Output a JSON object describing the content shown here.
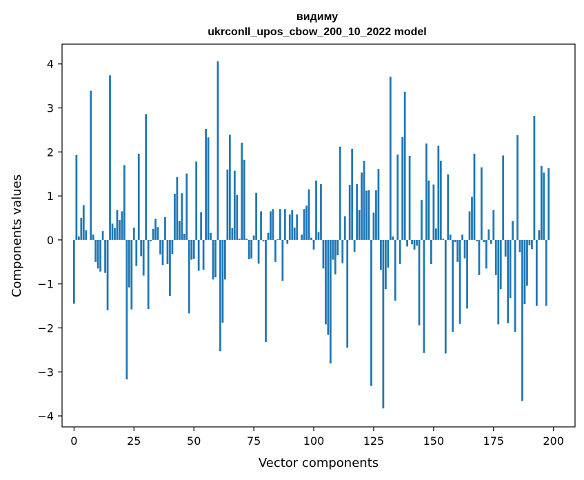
{
  "chart_data": {
    "type": "bar",
    "title": "видиму",
    "subtitle": "ukrconll_upos_cbow_200_10_2022 model",
    "xlabel": "Vector components",
    "ylabel": "Components values",
    "xlim": [
      -5,
      209
    ],
    "ylim": [
      -4.25,
      4.45
    ],
    "xticks": [
      0,
      25,
      50,
      75,
      100,
      125,
      150,
      175,
      200
    ],
    "yticks": [
      -4,
      -3,
      -2,
      -1,
      0,
      1,
      2,
      3,
      4
    ],
    "ytick_labels": [
      "−4",
      "−3",
      "−2",
      "−1",
      "0",
      "1",
      "2",
      "3",
      "4"
    ],
    "grid": false,
    "color": "#1f77b4",
    "values": [
      -1.45,
      1.93,
      0.08,
      0.5,
      0.79,
      0.22,
      0.0,
      3.39,
      0.12,
      -0.5,
      -0.65,
      -0.72,
      0.2,
      -0.75,
      -1.6,
      3.74,
      0.37,
      0.27,
      0.68,
      0.45,
      0.65,
      1.7,
      -3.17,
      -1.08,
      -1.58,
      0.28,
      -0.59,
      1.96,
      -0.37,
      -0.81,
      2.86,
      -1.57,
      -0.03,
      0.25,
      0.48,
      0.29,
      -0.33,
      -0.57,
      0.52,
      -0.55,
      -1.27,
      -0.32,
      1.05,
      1.43,
      0.43,
      1.06,
      0.14,
      1.51,
      -1.67,
      -0.45,
      -0.43,
      1.78,
      -0.7,
      0.63,
      -0.68,
      2.52,
      2.33,
      0.16,
      -0.9,
      -0.85,
      4.06,
      -2.53,
      -1.88,
      -0.9,
      1.6,
      2.39,
      0.27,
      1.57,
      1.02,
      0.03,
      2.21,
      1.82,
      0.03,
      -0.44,
      -0.42,
      0.1,
      1.07,
      -0.54,
      0.65,
      -0.03,
      -2.32,
      0.16,
      0.65,
      0.7,
      -0.5,
      0.02,
      0.7,
      -0.93,
      0.7,
      -0.09,
      0.58,
      0.68,
      0.28,
      0.58,
      0.0,
      0.12,
      0.7,
      0.78,
      1.15,
      0.05,
      -0.22,
      1.35,
      0.18,
      1.27,
      -0.65,
      -1.92,
      -2.16,
      -2.81,
      -0.45,
      -0.78,
      -0.35,
      2.12,
      -0.53,
      0.54,
      -2.45,
      1.25,
      2.07,
      -0.27,
      1.27,
      0.68,
      1.53,
      1.8,
      1.12,
      1.13,
      -3.32,
      0.62,
      1.13,
      1.61,
      -0.68,
      -3.83,
      -1.12,
      -0.63,
      3.71,
      0.08,
      -1.38,
      1.94,
      -0.55,
      2.34,
      3.37,
      -0.15,
      1.91,
      -0.1,
      -0.22,
      -0.13,
      -1.94,
      0.91,
      -2.57,
      2.19,
      1.35,
      -0.55,
      1.26,
      0.26,
      2.14,
      1.8,
      0.03,
      -2.58,
      1.49,
      0.12,
      -2.09,
      -0.05,
      -0.5,
      -1.91,
      0.12,
      -0.42,
      -1.56,
      0.65,
      0.98,
      1.96,
      -0.03,
      -0.8,
      1.65,
      -0.05,
      -0.65,
      0.24,
      -0.09,
      0.68,
      -0.8,
      -1.92,
      -1.12,
      1.92,
      -0.38,
      -1.89,
      -1.32,
      0.43,
      -2.09,
      2.38,
      -0.28,
      -3.66,
      -1.46,
      -1.04,
      -0.12,
      -0.21,
      2.82,
      -1.5,
      0.22,
      1.68,
      1.53,
      -1.5,
      1.63,
      0.0
    ]
  }
}
